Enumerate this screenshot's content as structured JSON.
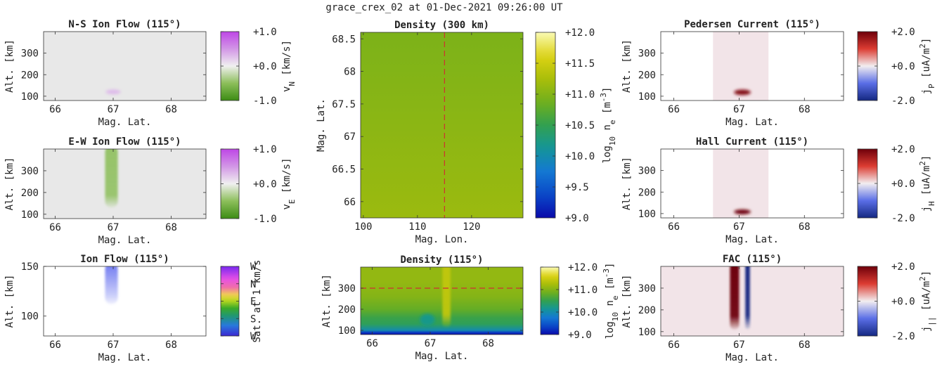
{
  "figure": {
    "title": "grace_crex_02 at 01-Dec-2021 09:26:00 UT"
  },
  "colors": {
    "frame": "#333333",
    "background_gray": "#e8e8e8",
    "current_bg": "#f2e4e8",
    "marker": "#d03030"
  },
  "chart_data": [
    {
      "id": "ns_flow",
      "type": "heatmap",
      "title": "N-S Ion Flow (115°)",
      "xlabel": "Mag. Lat.",
      "ylabel": "Alt. [km]",
      "x_ticks": [
        "66",
        "67",
        "68"
      ],
      "y_ticks": [
        "100",
        "200",
        "300"
      ],
      "xlim": [
        65.8,
        68.6
      ],
      "ylim": [
        80,
        400
      ],
      "colorbar": {
        "cmap": "green-white-purple",
        "ticks": [
          "+1.0",
          "+0.0",
          "-1.0"
        ],
        "label": "v",
        "label_sub": "N",
        "label_suffix": " [km/s]"
      },
      "features": [
        {
          "kind": "blob",
          "lat": 67.0,
          "alt": 120,
          "value": 0.3,
          "sigma_lat": 0.08,
          "sigma_alt": 8
        }
      ]
    },
    {
      "id": "ew_flow",
      "type": "heatmap",
      "title": "E-W Ion Flow (115°)",
      "xlabel": "Mag. Lat.",
      "ylabel": "Alt. [km]",
      "x_ticks": [
        "66",
        "67",
        "68"
      ],
      "y_ticks": [
        "100",
        "200",
        "300"
      ],
      "xlim": [
        65.8,
        68.6
      ],
      "ylim": [
        80,
        400
      ],
      "colorbar": {
        "cmap": "green-white-purple",
        "ticks": [
          "+1.0",
          "+0.0",
          "-1.0"
        ],
        "label": "v",
        "label_sub": "E",
        "label_suffix": " [km/s]"
      },
      "features": [
        {
          "kind": "column",
          "lat": 66.97,
          "alt_bottom": 130,
          "value": -0.45,
          "width_lat": 0.22
        }
      ]
    },
    {
      "id": "ion_flow",
      "type": "heatmap",
      "title": "Ion Flow (115°)",
      "xlabel": "Mag. Lat.",
      "ylabel": "Alt. [km]",
      "x_ticks": [
        "66",
        "67",
        "68"
      ],
      "y_ticks": [
        "100",
        "150"
      ],
      "xlim": [
        65.8,
        68.6
      ],
      "ylim": [
        80,
        150
      ],
      "colorbar": {
        "cmap": "direction",
        "ticks": [
          "W",
          "N",
          "E",
          "S",
          "W"
        ],
        "label": "Sat. at 1 km/s"
      },
      "features": [
        {
          "kind": "column",
          "lat": 66.97,
          "alt_bottom": 112,
          "direction": "W",
          "width_lat": 0.22
        }
      ]
    },
    {
      "id": "dens_map",
      "type": "heatmap",
      "title": "Density (300 km)",
      "xlabel": "Mag. Lon.",
      "ylabel": "Mag. Lat.",
      "x_ticks": [
        "100",
        "110",
        "120"
      ],
      "y_ticks": [
        "66",
        "66.5",
        "67",
        "67.5",
        "68",
        "68.5"
      ],
      "xlim": [
        99.5,
        129.5
      ],
      "ylim": [
        65.75,
        68.6
      ],
      "colorbar": {
        "cmap": "parula",
        "ticks": [
          "+12.0",
          "+11.5",
          "+11.0",
          "+10.5",
          "+10.0",
          "+9.5",
          "+9.0"
        ],
        "label": "log",
        "label_sub": "10",
        "label_mid": " n",
        "label_sub2": "e",
        "label_suffix": " [m",
        "label_sup": "-3",
        "label_end": "]"
      },
      "values": {
        "lat_min_value": 11.15,
        "lat_max_value": 10.95
      },
      "marker": {
        "orientation": "vertical",
        "lon": 115
      }
    },
    {
      "id": "dens_115",
      "type": "heatmap",
      "title": "Density (115°)",
      "xlabel": "Mag. Lat.",
      "ylabel": "Alt. [km]",
      "x_ticks": [
        "66",
        "67",
        "68"
      ],
      "y_ticks": [
        "100",
        "200",
        "300"
      ],
      "xlim": [
        65.8,
        68.6
      ],
      "ylim": [
        80,
        400
      ],
      "colorbar": {
        "cmap": "parula",
        "ticks": [
          "+12.0",
          "+11.0",
          "+10.0",
          "+9.0"
        ],
        "label": "log",
        "label_sub": "10",
        "label_mid": " n",
        "label_sub2": "e",
        "label_suffix": " [m",
        "label_sup": "-3",
        "label_end": "]"
      },
      "profile": [
        [
          80,
          9.0
        ],
        [
          90,
          9.3
        ],
        [
          100,
          10.0
        ],
        [
          130,
          10.45
        ],
        [
          160,
          10.55
        ],
        [
          200,
          10.8
        ],
        [
          260,
          11.0
        ],
        [
          330,
          11.1
        ],
        [
          400,
          11.1
        ]
      ],
      "features": [
        {
          "kind": "column",
          "lat": 67.28,
          "alt_bottom": 115,
          "value": 11.4,
          "width_lat": 0.14
        },
        {
          "kind": "blob",
          "lat": 66.95,
          "alt": 150,
          "value": 10.2,
          "sigma_lat": 0.08,
          "sigma_alt": 20
        }
      ],
      "marker": {
        "orientation": "horizontal",
        "alt": 300
      }
    },
    {
      "id": "pedersen",
      "type": "heatmap",
      "title": "Pedersen Current (115°)",
      "xlabel": "Mag. Lat.",
      "ylabel": "Alt. [km]",
      "x_ticks": [
        "66",
        "67",
        "68"
      ],
      "y_ticks": [
        "100",
        "200",
        "300"
      ],
      "xlim": [
        65.8,
        68.6
      ],
      "ylim": [
        80,
        400
      ],
      "colorbar": {
        "cmap": "blue-white-red",
        "ticks": [
          "+2.0",
          "+0.0",
          "-2.0"
        ],
        "label": "j",
        "label_sub": "P",
        "label_suffix": " [uA/m",
        "label_sup": "2",
        "label_end": "]"
      },
      "band": [
        66.6,
        67.45
      ],
      "features": [
        {
          "kind": "blob",
          "lat": 67.05,
          "alt": 118,
          "value": 1.8,
          "sigma_lat": 0.08,
          "sigma_alt": 9
        }
      ]
    },
    {
      "id": "hall",
      "type": "heatmap",
      "title": "Hall Current (115°)",
      "xlabel": "Mag. Lat.",
      "ylabel": "Alt. [km]",
      "x_ticks": [
        "66",
        "67",
        "68"
      ],
      "y_ticks": [
        "100",
        "200",
        "300"
      ],
      "xlim": [
        65.8,
        68.6
      ],
      "ylim": [
        80,
        400
      ],
      "colorbar": {
        "cmap": "blue-white-red",
        "ticks": [
          "+2.0",
          "+0.0",
          "-2.0"
        ],
        "label": "j",
        "label_sub": "H",
        "label_suffix": " [uA/m",
        "label_sup": "2",
        "label_end": "]"
      },
      "band": [
        66.6,
        67.45
      ],
      "features": [
        {
          "kind": "blob",
          "lat": 67.05,
          "alt": 108,
          "value": 4.0,
          "sigma_lat": 0.08,
          "sigma_alt": 8
        }
      ]
    },
    {
      "id": "fac",
      "type": "heatmap",
      "title": "FAC (115°)",
      "xlabel": "Mag. Lat.",
      "ylabel": "Alt. [km]",
      "x_ticks": [
        "66",
        "67",
        "68"
      ],
      "y_ticks": [
        "100",
        "200",
        "300"
      ],
      "xlim": [
        65.8,
        68.6
      ],
      "ylim": [
        80,
        400
      ],
      "colorbar": {
        "cmap": "blue-white-red",
        "ticks": [
          "+2.0",
          "+0.0",
          "-2.0"
        ],
        "label": "j",
        "label_sub": "||",
        "label_suffix": " [uA/m",
        "label_sup": "2",
        "label_end": "]"
      },
      "background_value": 0.15,
      "features": [
        {
          "kind": "column",
          "lat": 66.93,
          "alt_bottom": 110,
          "value": 2.6,
          "width_lat": 0.14
        },
        {
          "kind": "column",
          "lat": 67.13,
          "alt_bottom": 112,
          "value": -2.6,
          "width_lat": 0.07
        }
      ]
    }
  ]
}
